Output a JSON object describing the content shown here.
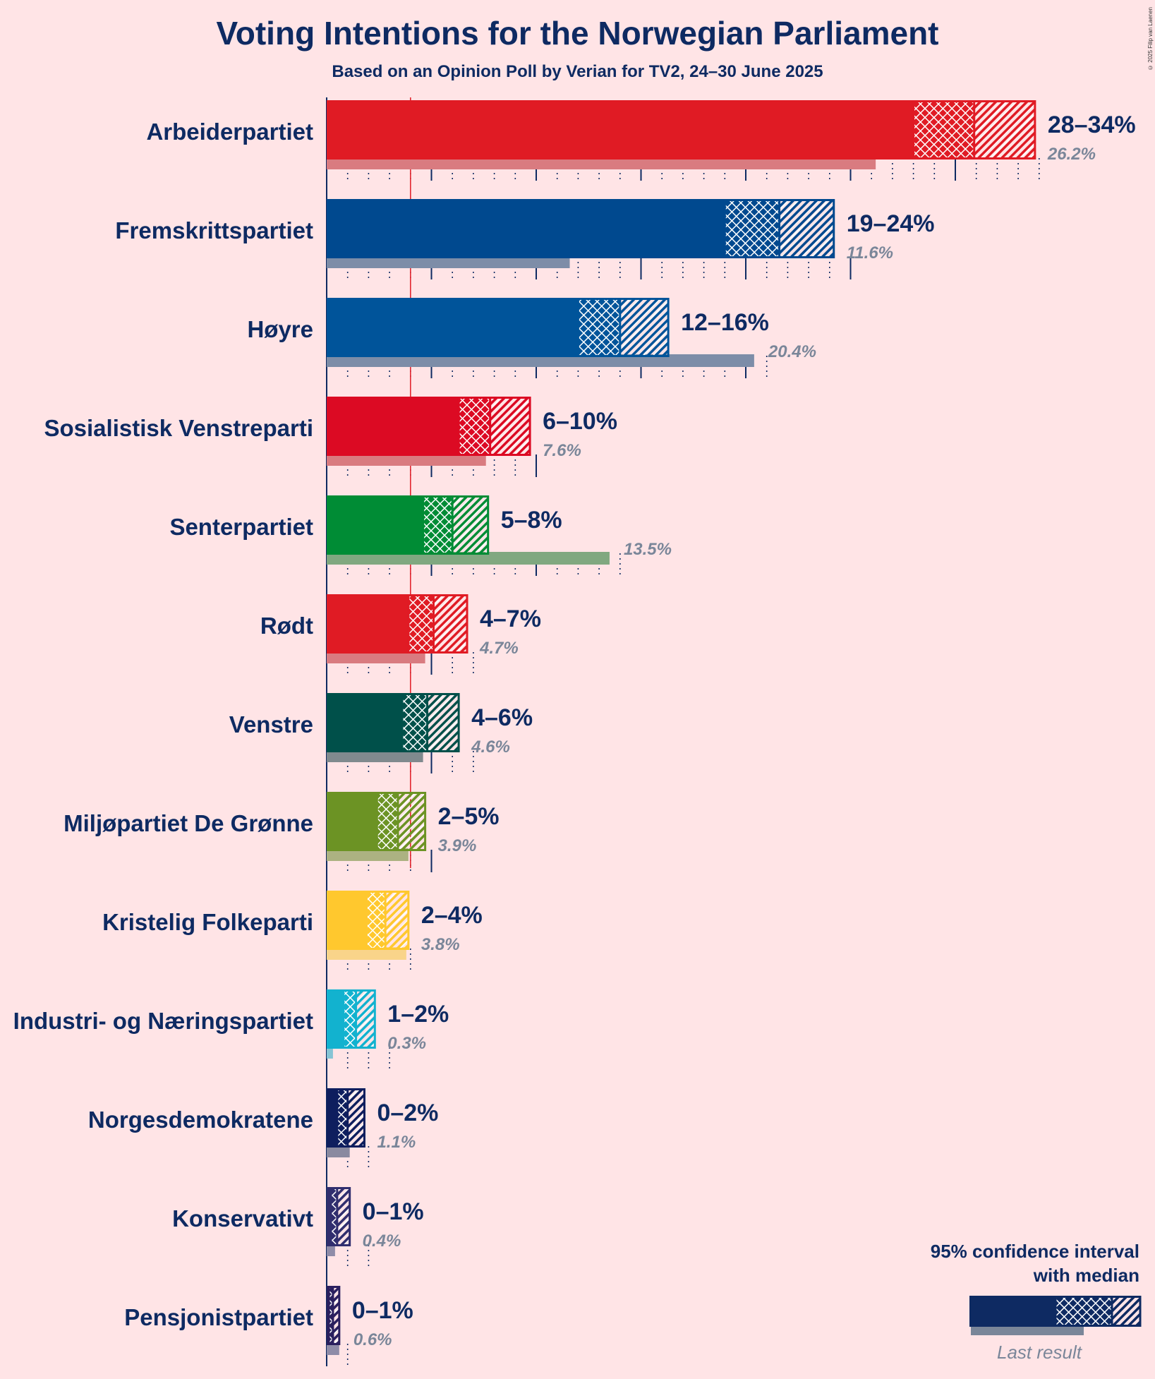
{
  "chart_data": {
    "type": "bar",
    "title": "Voting Intentions for the Norwegian Parliament",
    "subtitle": "Based on an Opinion Poll by Verian for TV2, 24–30 June 2025",
    "copyright": "© 2025 Filip van Laenen",
    "xlabel": "",
    "ylabel": "",
    "xlim": [
      0,
      35
    ],
    "threshold": 4,
    "legend": {
      "title_line1": "95% confidence interval",
      "title_line2": "with median",
      "last_result_label": "Last result",
      "placement": "bottom-right",
      "color": "#0E2A62"
    },
    "parties": [
      {
        "name": "Arbeiderpartiet",
        "color": "#E01B24",
        "lastColor": "#D97B80",
        "low": 28,
        "median": 30.9,
        "high": 33.8,
        "range_label": "28–34%",
        "last": 26.2,
        "last_label": "26.2%"
      },
      {
        "name": "Fremskrittspartiet",
        "color": "#00498F",
        "lastColor": "#7D8DA8",
        "low": 19,
        "median": 21.6,
        "high": 24.2,
        "range_label": "19–24%",
        "last": 11.6,
        "last_label": "11.6%"
      },
      {
        "name": "Høyre",
        "color": "#00549A",
        "lastColor": "#7D8DA8",
        "low": 12,
        "median": 14.0,
        "high": 16.3,
        "range_label": "12–16%",
        "last": 20.4,
        "last_label": "20.4%"
      },
      {
        "name": "Sosialistisk Venstreparti",
        "color": "#DC0A23",
        "lastColor": "#D97B80",
        "low": 6.3,
        "median": 7.8,
        "high": 9.7,
        "range_label": "6–10%",
        "last": 7.6,
        "last_label": "7.6%"
      },
      {
        "name": "Senterpartiet",
        "color": "#008C35",
        "lastColor": "#80A880",
        "low": 4.6,
        "median": 6.0,
        "high": 7.7,
        "range_label": "5–8%",
        "last": 13.5,
        "last_label": "13.5%"
      },
      {
        "name": "Rødt",
        "color": "#E01B24",
        "lastColor": "#D97B80",
        "low": 3.9,
        "median": 5.1,
        "high": 6.7,
        "range_label": "4–7%",
        "last": 4.7,
        "last_label": "4.7%"
      },
      {
        "name": "Venstre",
        "color": "#00504A",
        "lastColor": "#808A8E",
        "low": 3.6,
        "median": 4.8,
        "high": 6.3,
        "range_label": "4–6%",
        "last": 4.6,
        "last_label": "4.6%"
      },
      {
        "name": "Miljøpartiet De Grønne",
        "color": "#6C9324",
        "lastColor": "#ACB282",
        "low": 2.4,
        "median": 3.4,
        "high": 4.7,
        "range_label": "2–5%",
        "last": 3.9,
        "last_label": "3.9%"
      },
      {
        "name": "Kristelig Folkeparti",
        "color": "#FFC82E",
        "lastColor": "#F9D48A",
        "low": 1.9,
        "median": 2.8,
        "high": 3.9,
        "range_label": "2–4%",
        "last": 3.8,
        "last_label": "3.8%"
      },
      {
        "name": "Industri- og Næringspartiet",
        "color": "#12B2CF",
        "lastColor": "#86C4D4",
        "low": 0.8,
        "median": 1.4,
        "high": 2.3,
        "range_label": "1–2%",
        "last": 0.3,
        "last_label": "0.3%"
      },
      {
        "name": "Norgesdemokratene",
        "color": "#0E1E5E",
        "lastColor": "#8A8AA0",
        "low": 0.5,
        "median": 1.0,
        "high": 1.8,
        "range_label": "0–2%",
        "last": 1.1,
        "last_label": "1.1%"
      },
      {
        "name": "Konservativt",
        "color": "#302E6E",
        "lastColor": "#8F8CA8",
        "low": 0.2,
        "median": 0.5,
        "high": 1.1,
        "range_label": "0–1%",
        "last": 0.4,
        "last_label": "0.4%"
      },
      {
        "name": "Pensjonistpartiet",
        "color": "#2A1F5E",
        "lastColor": "#8F8CA8",
        "low": 0.1,
        "median": 0.3,
        "high": 0.6,
        "range_label": "0–1%",
        "last": 0.6,
        "last_label": "0.6%"
      }
    ]
  }
}
